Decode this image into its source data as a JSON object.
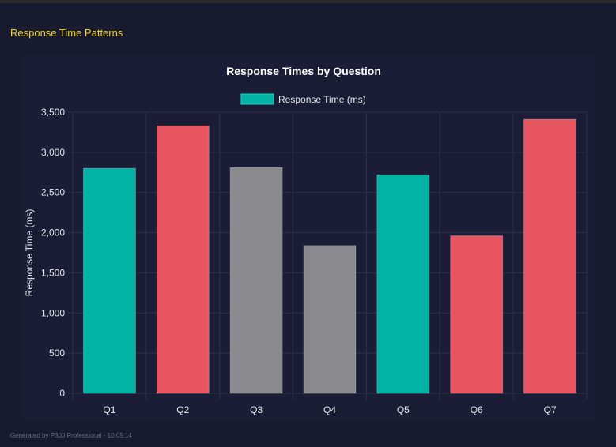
{
  "header": {
    "section_title": "Response Time Patterns"
  },
  "footer": {
    "text": "Generated by P300 Professional - 10:05:14"
  },
  "chart_data": {
    "type": "bar",
    "title": "Response Times by Question",
    "ylabel": "Response Time (ms)",
    "xlabel": "",
    "categories": [
      "Q1",
      "Q2",
      "Q3",
      "Q4",
      "Q5",
      "Q6",
      "Q7"
    ],
    "series": [
      {
        "name": "Response Time (ms)",
        "values": [
          2800,
          3330,
          2810,
          1840,
          2720,
          1960,
          3410
        ]
      }
    ],
    "bar_colors": [
      "#00b3a4",
      "#e8545f",
      "#8a8a8e",
      "#8a8a8e",
      "#00b3a4",
      "#e8545f",
      "#e8545f"
    ],
    "legend_color": "#00b3a4",
    "ylim": [
      0,
      3500
    ],
    "yticks": [
      "0",
      "500",
      "1,000",
      "1,500",
      "2,000",
      "2,500",
      "3,000",
      "3,500"
    ],
    "grid": true,
    "legend_position": "top"
  }
}
